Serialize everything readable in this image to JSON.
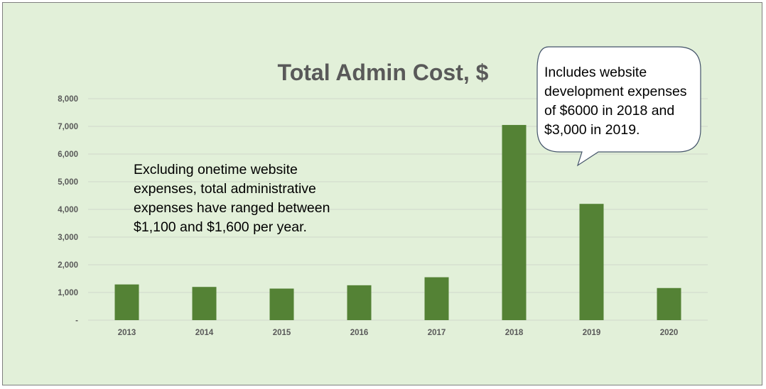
{
  "chart_data": {
    "type": "bar",
    "title": "Total Admin Cost, $",
    "categories": [
      "2013",
      "2014",
      "2015",
      "2016",
      "2017",
      "2018",
      "2019",
      "2020"
    ],
    "values": [
      1290,
      1200,
      1140,
      1260,
      1550,
      7050,
      4200,
      1160
    ],
    "ylim": [
      0,
      8000
    ],
    "yticks": [
      0,
      1000,
      2000,
      3000,
      4000,
      5000,
      6000,
      7000,
      8000
    ],
    "ytick_labels": [
      "-",
      "1,000",
      "2,000",
      "3,000",
      "4,000",
      "5,000",
      "6,000",
      "7,000",
      "8,000"
    ],
    "xlabel": "",
    "ylabel": "",
    "grid": true,
    "legend": "none",
    "bar_color": "#548235",
    "background_color": "#e2f0d9"
  },
  "annotations": {
    "left_note": "Excluding onetime website expenses, total administrative expenses have ranged between $1,100 and $1,600 per year.",
    "callout": "Includes website development expenses of $6000 in 2018 and $3,000 in 2019."
  }
}
